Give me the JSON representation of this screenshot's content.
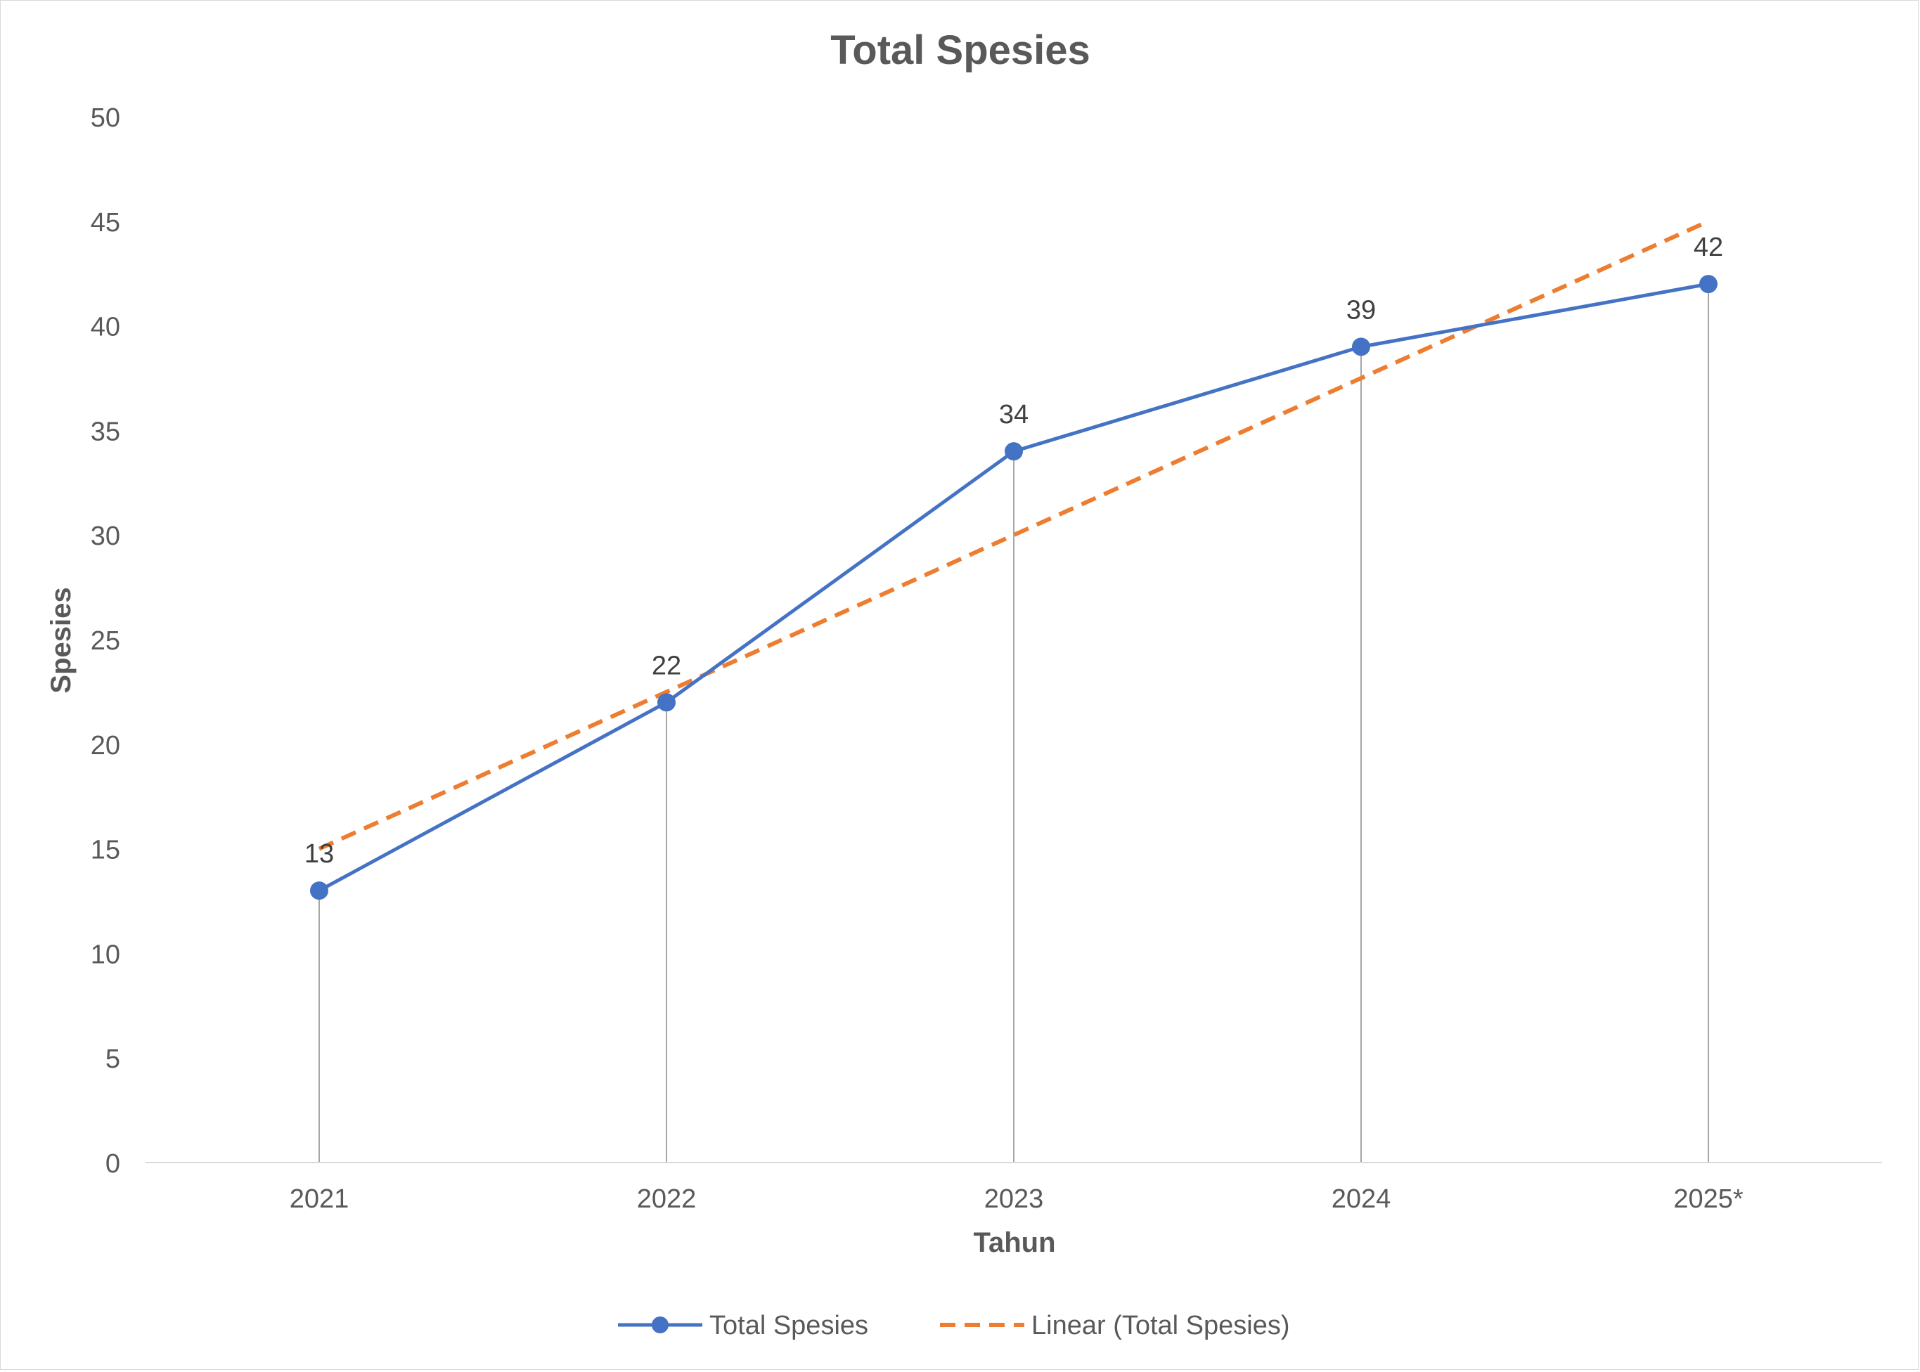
{
  "chart_data": {
    "type": "line",
    "title": "Total Spesies",
    "xlabel": "Tahun",
    "ylabel": "Spesies",
    "categories": [
      "2021",
      "2022",
      "2023",
      "2024",
      "2025*"
    ],
    "ylim": [
      0,
      50
    ],
    "yticks": [
      0,
      5,
      10,
      15,
      20,
      25,
      30,
      35,
      40,
      45,
      50
    ],
    "gridlines": false,
    "drop_lines": true,
    "series": [
      {
        "name": "Total Spesies",
        "values": [
          13,
          22,
          34,
          39,
          42
        ],
        "color": "#4472c4",
        "marker": "circle",
        "data_labels": true
      }
    ],
    "trendline": {
      "name": "Linear (Total Spesies)",
      "type": "linear",
      "values": [
        15,
        22.5,
        30,
        37.5,
        45
      ],
      "color": "#ed7d31",
      "dash": "dashed"
    },
    "legend": {
      "position": "bottom",
      "entries": [
        "Total Spesies",
        "Linear (Total Spesies)"
      ]
    }
  }
}
